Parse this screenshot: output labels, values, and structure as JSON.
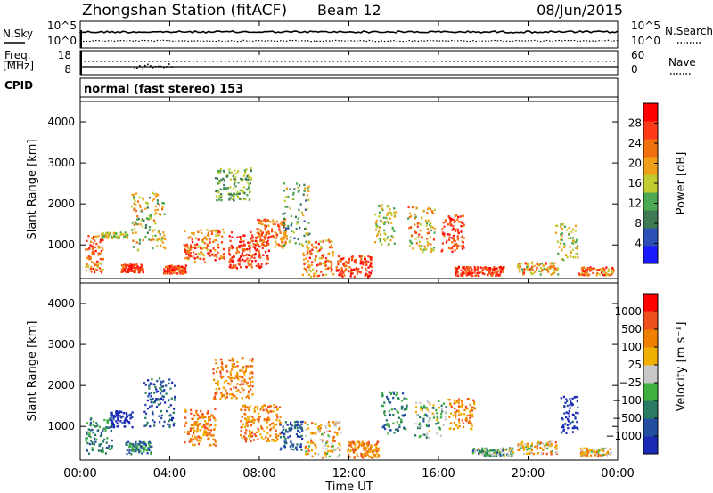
{
  "header": {
    "station_title": "Zhongshan Station (fitACF)",
    "beam": "Beam 12",
    "date": "08/Jun/2015"
  },
  "side_labels": {
    "nsky": "N.Sky",
    "nsearch": "N.Search",
    "freq": "Freq.",
    "mhz": "[MHz]",
    "nave": "Nave",
    "cpid": "CPID"
  },
  "cpid_text": "normal (fast stereo) 153",
  "noise_panel": {
    "left_ticks": [
      "10^5",
      "10^0"
    ],
    "right_ticks": [
      "10^5",
      "10^0"
    ]
  },
  "freq_panel": {
    "left_ticks": [
      "18",
      "8"
    ],
    "right_ticks": [
      "60",
      "0"
    ]
  },
  "colors": {
    "power_scale": [
      "#1a1aff",
      "#2c50b5",
      "#3d7a54",
      "#4da852",
      "#c2cc30",
      "#f0a018",
      "#f07010",
      "#ff3a1a",
      "#ff0000"
    ],
    "velocity_scale": [
      "#1a2ab4",
      "#244fa0",
      "#2a7b64",
      "#40b040",
      "#c8c8c8",
      "#f0b000",
      "#f08000",
      "#f05020",
      "#ff0000"
    ]
  },
  "chart_data": [
    {
      "type": "heatmap",
      "panel": "power",
      "ylabel": "Slant Range [km]",
      "xlabel": "Time UT",
      "x_ticks": [
        "00:00",
        "04:00",
        "08:00",
        "12:00",
        "16:00",
        "20:00",
        "00:00"
      ],
      "y_ticks": [
        "1000",
        "2000",
        "3000",
        "4000"
      ],
      "ylim": [
        180,
        4500
      ],
      "colorbar_label": "Power [dB]",
      "colorbar_ticks": [
        "4",
        "8",
        "12",
        "16",
        "20",
        "24",
        "28"
      ],
      "colorbar_range": [
        0,
        30
      ]
    },
    {
      "type": "heatmap",
      "panel": "velocity",
      "ylabel": "Slant Range [km]",
      "xlabel": "Time UT",
      "x_ticks": [
        "00:00",
        "04:00",
        "08:00",
        "12:00",
        "16:00",
        "20:00",
        "00:00"
      ],
      "y_ticks": [
        "1000",
        "2000",
        "3000",
        "4000"
      ],
      "ylim": [
        180,
        4500
      ],
      "colorbar_label": "Velocity [m s⁻¹]",
      "colorbar_ticks": [
        "1000",
        "500",
        "100",
        "25",
        "−25",
        "−100",
        "−500",
        "−1000"
      ]
    }
  ]
}
